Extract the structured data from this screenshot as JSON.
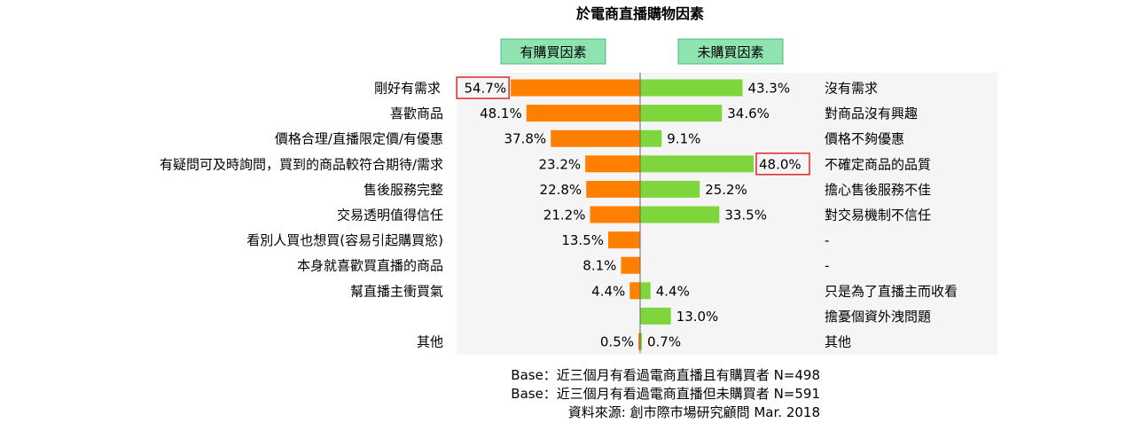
{
  "chart_data": {
    "type": "bar",
    "orientation": "horizontal-diverging",
    "title": "於電商直播購物因素",
    "legend": {
      "left": "有購買因素",
      "right": "未購買因素"
    },
    "rows": [
      {
        "left_label": "剛好有需求",
        "left_value": 54.7,
        "left_text": "54.7%",
        "right_label": "沒有需求",
        "right_value": 43.3,
        "right_text": "43.3%"
      },
      {
        "left_label": "喜歡商品",
        "left_value": 48.1,
        "left_text": "48.1%",
        "right_label": "對商品沒有興趣",
        "right_value": 34.6,
        "right_text": "34.6%"
      },
      {
        "left_label": "價格合理/直播限定價/有優惠",
        "left_value": 37.8,
        "left_text": "37.8%",
        "right_label": "價格不夠優惠",
        "right_value": 9.1,
        "right_text": "9.1%"
      },
      {
        "left_label": "有疑問可及時詢問，買到的商品較符合期待/需求",
        "left_value": 23.2,
        "left_text": "23.2%",
        "right_label": "不確定商品的品質",
        "right_value": 48.0,
        "right_text": "48.0%"
      },
      {
        "left_label": "售後服務完整",
        "left_value": 22.8,
        "left_text": "22.8%",
        "right_label": "擔心售後服務不佳",
        "right_value": 25.2,
        "right_text": "25.2%"
      },
      {
        "left_label": "交易透明值得信任",
        "left_value": 21.2,
        "left_text": "21.2%",
        "right_label": "對交易機制不信任",
        "right_value": 33.5,
        "right_text": "33.5%"
      },
      {
        "left_label": "看別人買也想買(容易引起購買慾)",
        "left_value": 13.5,
        "left_text": "13.5%",
        "right_label": "-",
        "right_value": null,
        "right_text": ""
      },
      {
        "left_label": "本身就喜歡買直播的商品",
        "left_value": 8.1,
        "left_text": "8.1%",
        "right_label": "-",
        "right_value": null,
        "right_text": ""
      },
      {
        "left_label": "幫直播主衝買氣",
        "left_value": 4.4,
        "left_text": "4.4%",
        "right_label": "只是為了直播主而收看",
        "right_value": 4.4,
        "right_text": "4.4%"
      },
      {
        "left_label": "",
        "left_value": null,
        "left_text": "",
        "right_label": "擔憂個資外洩問題",
        "right_value": 13.0,
        "right_text": "13.0%"
      },
      {
        "left_label": "其他",
        "left_value": 0.5,
        "left_text": "0.5%",
        "right_label": "其他",
        "right_value": 0.7,
        "right_text": "0.7%"
      }
    ],
    "highlighted": [
      {
        "side": "left",
        "row": 0
      },
      {
        "side": "right",
        "row": 3
      }
    ],
    "value_scale_max": 60,
    "colors": {
      "left_bar": "#ff8000",
      "right_bar": "#7ed63c",
      "legend_fill": "#8fe3b0",
      "legend_border": "#4cb87a",
      "highlight": "#e0262b",
      "panel": "#f5f5f5",
      "axis": "#666666"
    },
    "footnotes": [
      "Base：近三個月有看過電商直播且有購買者 N=498",
      "Base：近三個月有看過電商直播但未購買者 N=591",
      "資料來源: 創市際市場研究顧問 Mar. 2018"
    ]
  }
}
